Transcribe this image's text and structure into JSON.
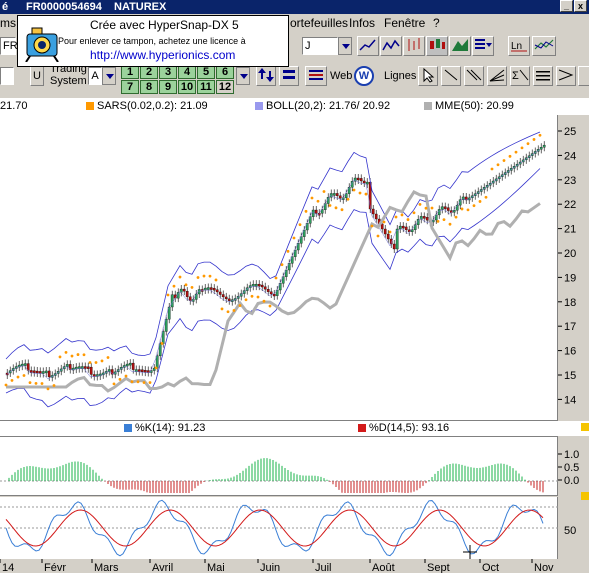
{
  "window": {
    "title_fragment": "é",
    "code": "FR0000054694",
    "name": "NATUREX"
  },
  "menu": {
    "item1": "ms",
    "item2": "ortefeuilles",
    "item3": "Infos",
    "item4": "Fenêtre",
    "item5": "?"
  },
  "stamp": {
    "line1": "Crée avec HyperSnap-DX 5",
    "line2": "Pour enlever ce tampon, achetez une licence à",
    "line3": "http://www.hyperionics.com"
  },
  "toolbar": {
    "symbol_field": "FR",
    "period_field": "J",
    "trading_label_1": "Trading",
    "trading_label_2": "System",
    "trading_value": "A",
    "u_button": "U",
    "numbers_row1": [
      "1",
      "2",
      "3",
      "4",
      "5",
      "6"
    ],
    "numbers_row2": [
      "7",
      "8",
      "9",
      "10",
      "11",
      "12"
    ],
    "web_label": "Web",
    "lines_label": "Lignes"
  },
  "legend": {
    "main_left": "21.70",
    "sars": "SARS(0.02,0.2): 21.09",
    "boll": "BOLL(20,2): 21.76/ 20.92",
    "mme": "MME(50): 20.99",
    "k": "%K(14): 91.23",
    "d": "%D(14,5): 93.16"
  },
  "colors": {
    "price_up": "#2e9e5f",
    "price_down": "#b01010",
    "sars": "#ff9900",
    "boll": "#3333cc",
    "mme": "#b0b0b0",
    "k_line": "#3a7fd6",
    "d_line": "#d31a1a",
    "osc_up": "#19b34a",
    "osc_down": "#c62020"
  },
  "main_axis": {
    "ticks": [
      "25",
      "24",
      "23",
      "22",
      "21",
      "20",
      "19",
      "18",
      "17",
      "16",
      "15",
      "14"
    ]
  },
  "osc_axis": {
    "ticks": [
      "1.0",
      "0.5",
      "0.0"
    ]
  },
  "stoch_axis": {
    "ticks": [
      "50"
    ]
  },
  "xaxis": {
    "labels": [
      "14",
      "Févr",
      "Mars",
      "Avril",
      "Mai",
      "Juin",
      "Juil",
      "Août",
      "Sept",
      "Oct",
      "Nov"
    ]
  }
}
